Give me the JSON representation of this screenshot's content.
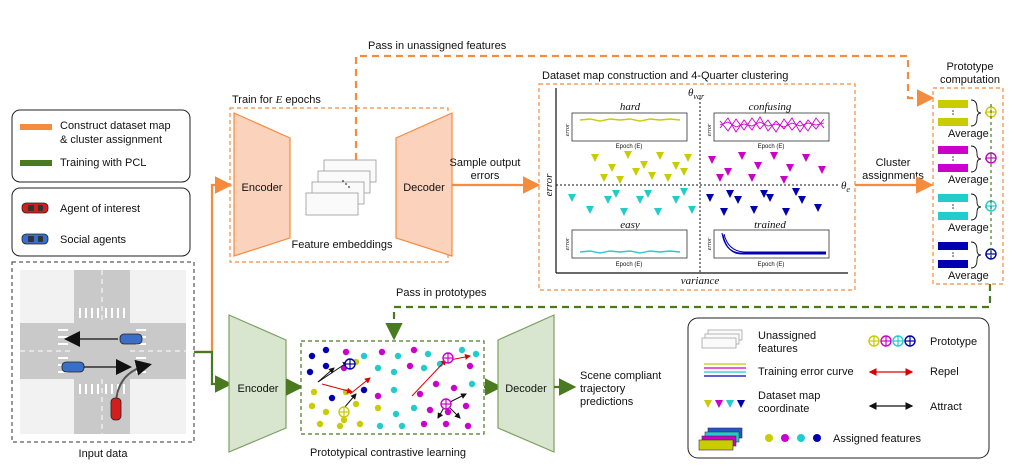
{
  "legend_top": {
    "orange_label_1": "Construct dataset map",
    "orange_label_2": "& cluster assignment",
    "green_label": "Training with PCL",
    "agent_label": "Agent of interest",
    "social_label": "Social agents",
    "orange_color": "#f58b3c",
    "green_color": "#4a7a1f"
  },
  "input": {
    "label": "Input data"
  },
  "top_branch": {
    "title": "Train for ",
    "title_var": "E",
    "title_end": " epochs",
    "encoder": "Encoder",
    "decoder": "Decoder",
    "features": "Feature embeddings",
    "sample_1": "Sample output",
    "sample_2": "errors",
    "unassigned_arrow": "Pass in unassigned features"
  },
  "dataset_map": {
    "title": "Dataset map construction and 4-Quarter clustering",
    "theta_var": "θ",
    "theta_var_sub": "var",
    "theta_e": "θ",
    "theta_e_sub": "e",
    "y_axis": "error",
    "x_axis": "variance",
    "quadrants": [
      "hard",
      "confusing",
      "easy",
      "trained"
    ],
    "mini_ylabel": "error",
    "mini_xlabel": "Epoch (E)"
  },
  "cluster": {
    "label_1": "Cluster",
    "label_2": "assignments"
  },
  "prototype": {
    "title_1": "Prototype",
    "title_2": "computation",
    "average": "Average",
    "colors": [
      "#c8cc00",
      "#cc00cc",
      "#22cccc",
      "#0000b0"
    ]
  },
  "bottom_branch": {
    "encoder": "Encoder",
    "decoder": "Decoder",
    "pass_prototypes": "Pass in prototypes",
    "pcl_label": "Prototypical contrastive learning",
    "output_1": "Scene compliant",
    "output_2": "trajectory",
    "output_3": "predictions"
  },
  "legend_bottom": {
    "unassigned_1": "Unassigned",
    "unassigned_2": "features",
    "prototype": "Prototype",
    "training_curve": "Training error curve",
    "repel": "Repel",
    "map_coord_1": "Dataset map",
    "map_coord_2": "coordinate",
    "attract": "Attract",
    "assigned": "Assigned features"
  }
}
